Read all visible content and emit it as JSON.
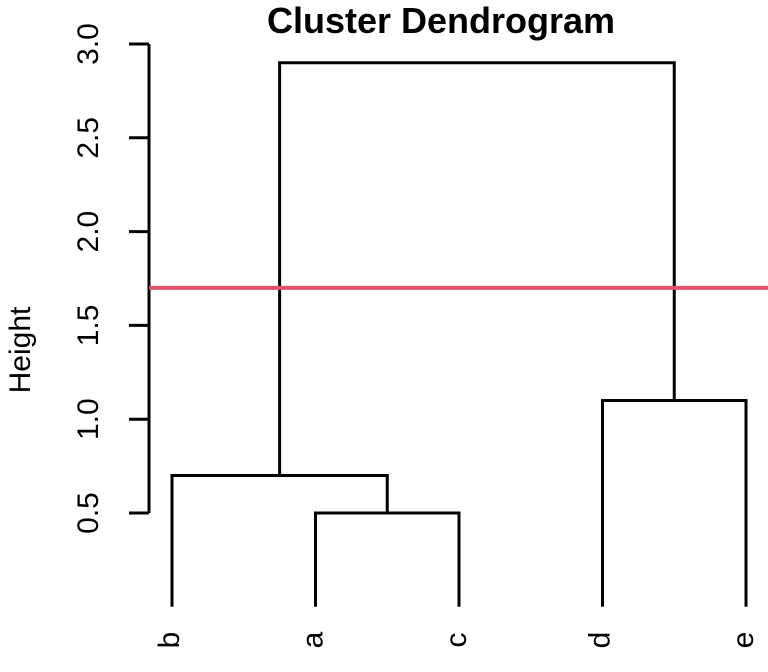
{
  "chart_data": {
    "type": "dendrogram",
    "title": "Cluster Dendrogram",
    "ylabel": "Height",
    "xlabel": "",
    "background": "#FFFFFF",
    "line_color": "#000000",
    "leaves": [
      "b",
      "a",
      "c",
      "d",
      "e"
    ],
    "merges": [
      {
        "left": "a",
        "right": "c",
        "height": 0.5
      },
      {
        "left": "b",
        "right": "#1",
        "height": 0.7
      },
      {
        "left": "d",
        "right": "e",
        "height": 1.1
      },
      {
        "left": "#2",
        "right": "#3",
        "height": 2.9
      }
    ],
    "yticks": [
      {
        "value": 0.5,
        "label": "0.5"
      },
      {
        "value": 1.0,
        "label": "1.0"
      },
      {
        "value": 1.5,
        "label": "1.5"
      },
      {
        "value": 2.0,
        "label": "2.0"
      },
      {
        "value": 2.5,
        "label": "2.5"
      },
      {
        "value": 3.0,
        "label": "3.0"
      }
    ],
    "ylim": [
      0.5,
      3.0
    ],
    "cut_line": {
      "height": 1.7,
      "color": "#DF536B"
    },
    "grid": "off",
    "legend": "none"
  }
}
